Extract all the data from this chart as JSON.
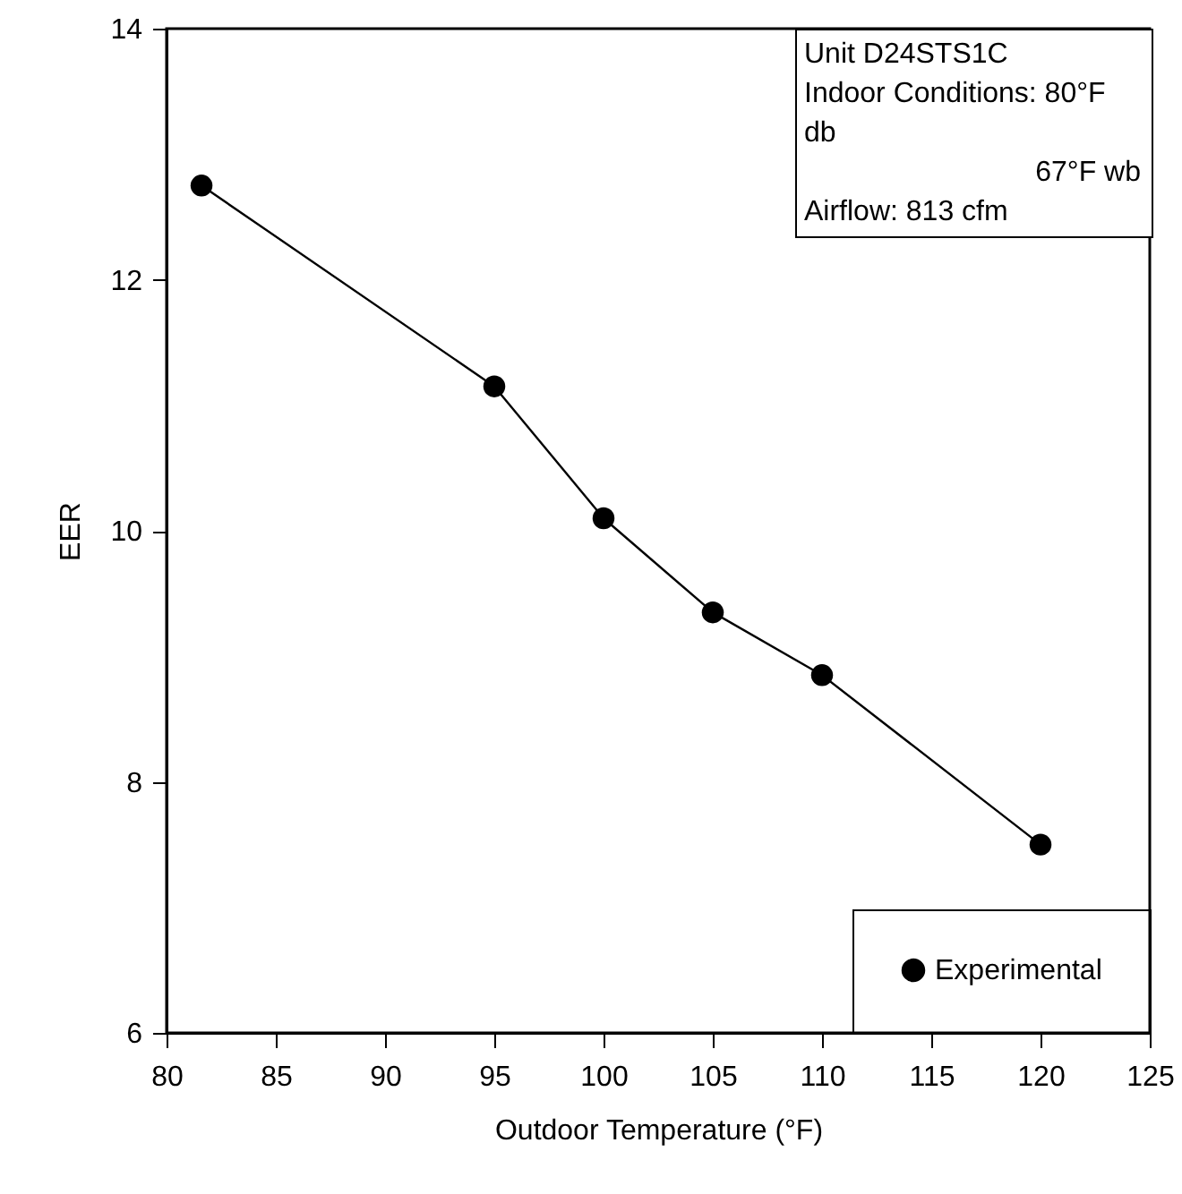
{
  "chart_data": {
    "type": "line",
    "xlabel": "Outdoor Temperature (°F)",
    "ylabel": "EER",
    "x": [
      81.6,
      95,
      100,
      105,
      110,
      120
    ],
    "series": [
      {
        "name": "Experimental",
        "color": "#000000",
        "values": [
          12.75,
          11.15,
          10.1,
          9.35,
          8.85,
          7.5
        ]
      }
    ],
    "xlim": [
      80,
      125
    ],
    "xticks": [
      80,
      85,
      90,
      95,
      100,
      105,
      110,
      115,
      120,
      125
    ],
    "ylim": [
      6,
      14
    ],
    "yticks": [
      6,
      8,
      10,
      12,
      14
    ],
    "annotations": [
      "Unit D24STS1C",
      "Indoor Conditions: 80°F db",
      "67°F wb",
      "Airflow: 813 cfm"
    ],
    "legend": "bottom right",
    "marker": "circle",
    "line_style": "solid",
    "grid": false
  }
}
